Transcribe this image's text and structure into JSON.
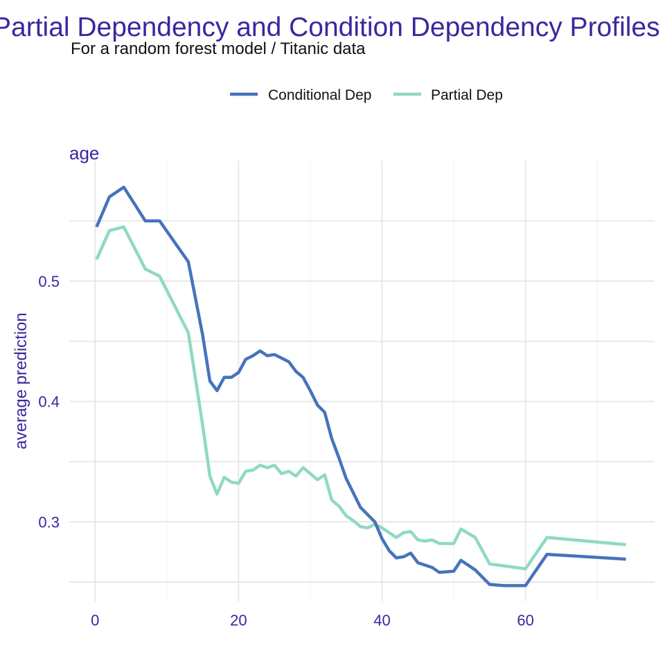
{
  "colors": {
    "title": "#3a27a0",
    "conditional": "#4673bb",
    "partial": "#8fd9c4",
    "grid": "#e3e3e3"
  },
  "chart_data": {
    "type": "line",
    "title": "Partial Dependency and Condition Dependency Profiles",
    "subtitle": "For a random forest model / Titanic data",
    "panel_label": "age",
    "xlabel": "",
    "ylabel": "average prediction",
    "xlim": [
      -3.6,
      78
    ],
    "ylim": [
      0.234,
      0.6
    ],
    "x_ticks": [
      0,
      20,
      40,
      60
    ],
    "y_ticks": [
      0.3,
      0.4,
      0.5
    ],
    "grid": true,
    "legend_position": "top",
    "series": [
      {
        "name": "Conditional Dep",
        "color": "#4673bb",
        "x": [
          0.2,
          2,
          4,
          7,
          9,
          13,
          15,
          16,
          17,
          18,
          19,
          20,
          21,
          22,
          23,
          24,
          25,
          27,
          28,
          29,
          30,
          31,
          32,
          33,
          34,
          35,
          36,
          37,
          39,
          40,
          41,
          42,
          43,
          44,
          45,
          47,
          48,
          50,
          51,
          53,
          55,
          57,
          60,
          63,
          74
        ],
        "y": [
          0.545,
          0.57,
          0.578,
          0.55,
          0.55,
          0.516,
          0.455,
          0.417,
          0.409,
          0.42,
          0.42,
          0.424,
          0.435,
          0.438,
          0.442,
          0.438,
          0.439,
          0.433,
          0.425,
          0.42,
          0.409,
          0.397,
          0.391,
          0.369,
          0.353,
          0.336,
          0.324,
          0.312,
          0.3,
          0.286,
          0.276,
          0.27,
          0.271,
          0.274,
          0.266,
          0.262,
          0.258,
          0.259,
          0.268,
          0.26,
          0.248,
          0.247,
          0.247,
          0.273,
          0.269
        ]
      },
      {
        "name": "Partial Dep",
        "color": "#8fd9c4",
        "x": [
          0.2,
          2,
          4,
          7,
          9,
          13,
          15,
          16,
          17,
          18,
          19,
          20,
          21,
          22,
          23,
          24,
          25,
          26,
          27,
          28,
          29,
          31,
          32,
          33,
          34,
          35,
          36,
          37,
          38,
          39,
          40,
          42,
          43,
          44,
          45,
          46,
          47,
          48,
          50,
          51,
          53,
          55,
          60,
          63,
          74
        ],
        "y": [
          0.518,
          0.542,
          0.545,
          0.51,
          0.504,
          0.457,
          0.38,
          0.338,
          0.323,
          0.337,
          0.333,
          0.332,
          0.342,
          0.343,
          0.347,
          0.345,
          0.347,
          0.34,
          0.342,
          0.338,
          0.345,
          0.335,
          0.339,
          0.318,
          0.313,
          0.305,
          0.301,
          0.296,
          0.295,
          0.298,
          0.295,
          0.287,
          0.291,
          0.292,
          0.285,
          0.284,
          0.285,
          0.282,
          0.282,
          0.294,
          0.287,
          0.265,
          0.261,
          0.287,
          0.281
        ]
      }
    ]
  }
}
